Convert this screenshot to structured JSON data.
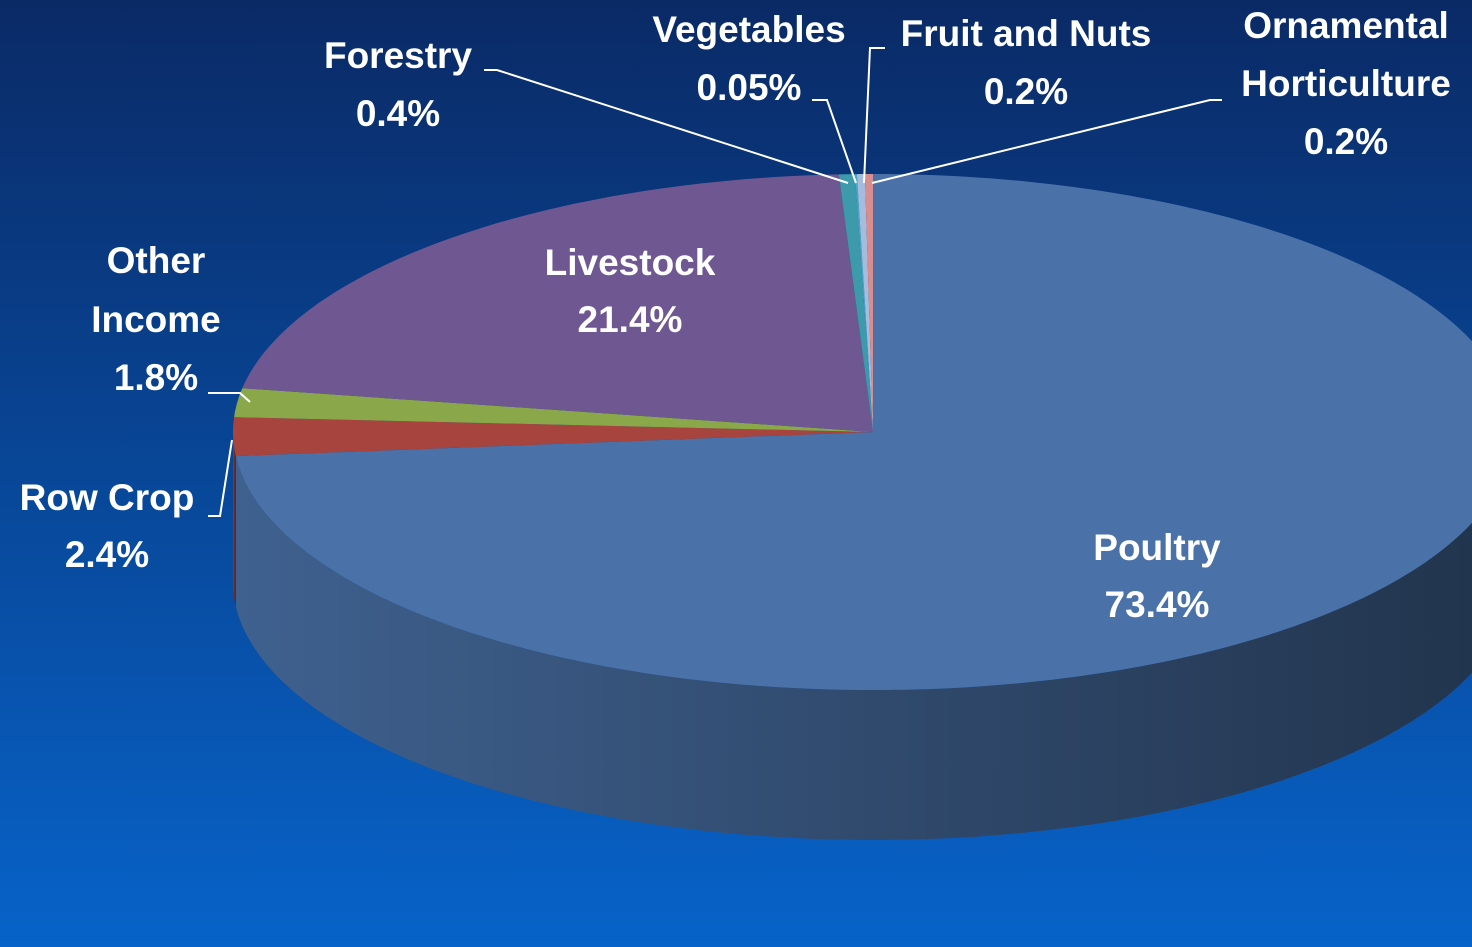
{
  "chart_data": {
    "type": "pie",
    "categories": [
      "Poultry",
      "Row Crop",
      "Other Income",
      "Livestock",
      "Forestry",
      "Vegetables",
      "Fruit and Nuts",
      "Ornamental Horticulture"
    ],
    "values": [
      73.4,
      2.4,
      1.8,
      21.4,
      0.4,
      0.05,
      0.2,
      0.2
    ],
    "value_labels": [
      "73.4%",
      "2.4%",
      "1.8%",
      "21.4%",
      "0.4%",
      "0.05%",
      "0.2%",
      "0.2%"
    ],
    "colors": [
      "#4a72a8",
      "#a8443e",
      "#8aa84a",
      "#6f5891",
      "#3c9aab",
      "#4aa6c8",
      "#a6bcdc",
      "#d88e8e"
    ]
  }
}
